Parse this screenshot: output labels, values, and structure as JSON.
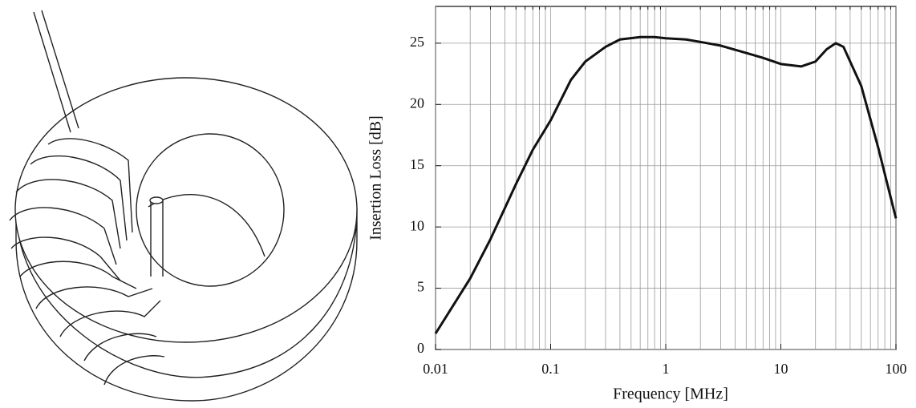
{
  "chart_data": {
    "type": "line",
    "x_label": "Frequency [MHz]",
    "y_label": "Insertion Loss [dB]",
    "x": [
      0.01,
      0.02,
      0.03,
      0.05,
      0.07,
      0.1,
      0.15,
      0.2,
      0.3,
      0.4,
      0.6,
      0.8,
      1,
      1.5,
      2,
      3,
      5,
      7,
      10,
      15,
      20,
      25,
      30,
      35,
      50,
      70,
      100
    ],
    "values": [
      1.3,
      5.8,
      9.0,
      13.5,
      16.3,
      18.7,
      22.0,
      23.5,
      24.7,
      25.3,
      25.5,
      25.5,
      25.4,
      25.3,
      25.1,
      24.8,
      24.2,
      23.8,
      23.3,
      23.1,
      23.5,
      24.5,
      25.0,
      24.7,
      21.5,
      16.5,
      10.7
    ],
    "color": "#111111",
    "xlog": true,
    "grid": true,
    "xlim": [
      0.01,
      100
    ],
    "xticks": [
      0.01,
      0.1,
      1,
      10,
      100
    ],
    "ylim": [
      0,
      28
    ],
    "yticks": [
      0,
      5,
      10,
      15,
      20,
      25
    ]
  }
}
